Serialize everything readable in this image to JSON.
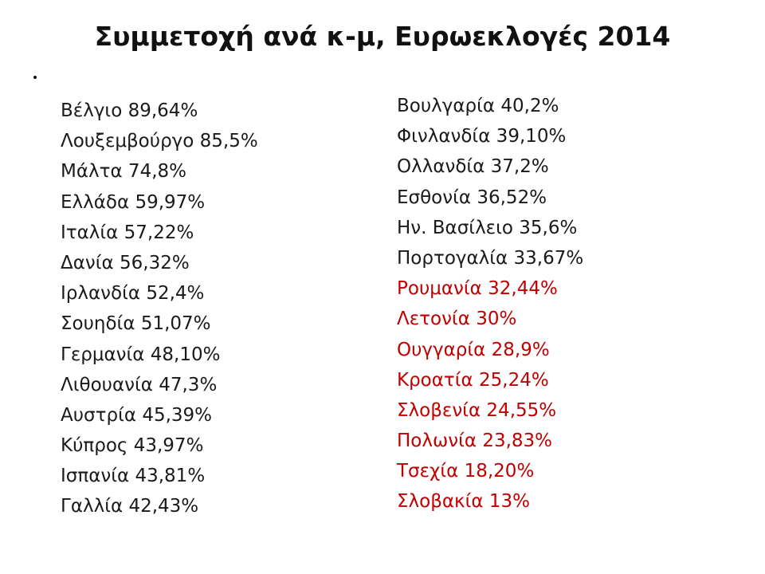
{
  "title": "Συμμετοχή ανά κ-μ, Ευρωεκλογές 2014",
  "colors": {
    "text": "#1a1a1a",
    "highlight": "#c00000",
    "background": "#ffffff"
  },
  "left_column": [
    {
      "text": "Βέλγιο 89,64%",
      "highlight": false
    },
    {
      "text": "Λουξεμβούργο 85,5%",
      "highlight": false
    },
    {
      "text": "Μάλτα 74,8%",
      "highlight": false
    },
    {
      "text": "Ελλάδα 59,97%",
      "highlight": false
    },
    {
      "text": "Ιταλία 57,22%",
      "highlight": false
    },
    {
      "text": "Δανία 56,32%",
      "highlight": false
    },
    {
      "text": "Ιρλανδία 52,4%",
      "highlight": false
    },
    {
      "text": "Σουηδία 51,07%",
      "highlight": false
    },
    {
      "text": "Γερμανία 48,10%",
      "highlight": false
    },
    {
      "text": "Λιθουανία 47,3%",
      "highlight": false
    },
    {
      "text": "Αυστρία 45,39%",
      "highlight": false
    },
    {
      "text": "Κύπρος 43,97%",
      "highlight": false
    },
    {
      "text": "Ισπανία 43,81%",
      "highlight": false
    },
    {
      "text": "Γαλλία 42,43%",
      "highlight": false
    }
  ],
  "right_column": [
    {
      "text": "Βουλγαρία 40,2%",
      "highlight": false
    },
    {
      "text": "Φινλανδία 39,10%",
      "highlight": false
    },
    {
      "text": "Ολλανδία 37,2%",
      "highlight": false
    },
    {
      "text": "Εσθονία 36,52%",
      "highlight": false
    },
    {
      "text": "Ην. Βασίλειο 35,6%",
      "highlight": false
    },
    {
      "text": "Πορτογαλία 33,67%",
      "highlight": false
    },
    {
      "text": "Ρουμανία 32,44%",
      "highlight": true
    },
    {
      "text": "Λετονία 30%",
      "highlight": true
    },
    {
      "text": "Ουγγαρία 28,9%",
      "highlight": true
    },
    {
      "text": "Κροατία 25,24%",
      "highlight": true
    },
    {
      "text": "Σλοβενία 24,55%",
      "highlight": true
    },
    {
      "text": "Πολωνία 23,83%",
      "highlight": true
    },
    {
      "text": "Τσεχία 18,20%",
      "highlight": true
    },
    {
      "text": "Σλοβακία 13%",
      "highlight": true
    }
  ]
}
